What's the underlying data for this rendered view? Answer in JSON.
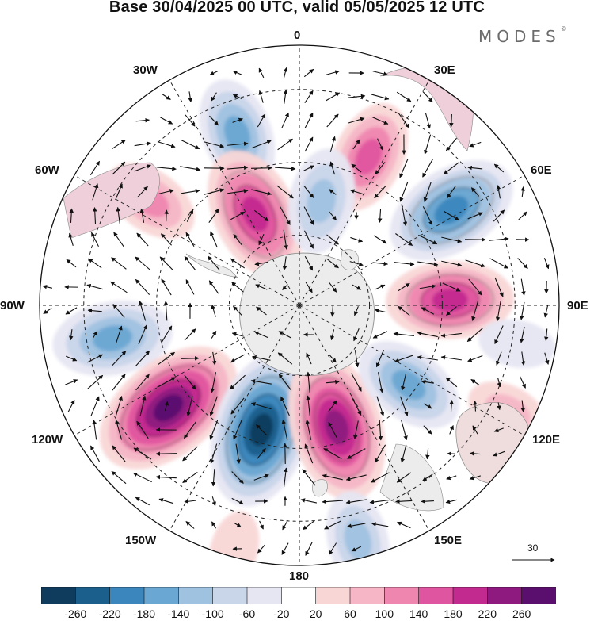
{
  "title": "Base 30/04/2025 00 UTC, valid 05/05/2025 12 UTC",
  "logo": "MODES",
  "logo_mark": "©",
  "longitude_labels": [
    "0",
    "30E",
    "60E",
    "90E",
    "120E",
    "150E",
    "180",
    "150W",
    "120W",
    "90W",
    "60W",
    "30W"
  ],
  "reference_vector": {
    "value": "30"
  },
  "colorbar": {
    "ticks": [
      "-260",
      "-220",
      "-180",
      "-140",
      "-100",
      "-60",
      "-20",
      "20",
      "60",
      "100",
      "140",
      "180",
      "220",
      "260"
    ],
    "colors": [
      "#0f3b5c",
      "#1b5f8c",
      "#3a86bd",
      "#6aa7d2",
      "#9fc2e0",
      "#c9d6ea",
      "#e6e6f2",
      "#ffffff",
      "#f9d6d6",
      "#f6b6c6",
      "#ef86b0",
      "#e0559f",
      "#c22a8f",
      "#8e1a7f",
      "#5a0f6e"
    ]
  },
  "anomalies": [
    {
      "id": "low-1",
      "lon": -20,
      "colat": 0.7,
      "value": -140
    },
    {
      "id": "high-1",
      "lon": 25,
      "colat": 0.63,
      "value": 140
    },
    {
      "id": "low-2",
      "lon": 58,
      "colat": 0.69,
      "value": -200
    },
    {
      "id": "high-2",
      "lon": -55,
      "colat": 0.7,
      "value": 100
    },
    {
      "id": "high-3",
      "lon": -26,
      "colat": 0.39,
      "value": 200
    },
    {
      "id": "low-3",
      "lon": 12,
      "colat": 0.41,
      "value": -120
    },
    {
      "id": "high-4",
      "lon": 88,
      "colat": 0.58,
      "value": 180
    },
    {
      "id": "low-4",
      "lon": -100,
      "colat": 0.73,
      "value": -160
    },
    {
      "id": "high-5",
      "lon": -128,
      "colat": 0.64,
      "value": 260
    },
    {
      "id": "low-5",
      "lon": -163,
      "colat": 0.5,
      "value": -260
    },
    {
      "id": "high-6",
      "lon": 163,
      "colat": 0.49,
      "value": 240
    },
    {
      "id": "low-6",
      "lon": 126,
      "colat": 0.52,
      "value": -140
    },
    {
      "id": "high-7",
      "lon": 117,
      "colat": 0.9,
      "value": 60
    },
    {
      "id": "low-7",
      "lon": 166,
      "colat": 0.93,
      "value": -100
    },
    {
      "id": "high-8",
      "lon": -165,
      "colat": 0.97,
      "value": 40
    },
    {
      "id": "low-8",
      "lon": 100,
      "colat": 0.85,
      "value": -40
    }
  ]
}
